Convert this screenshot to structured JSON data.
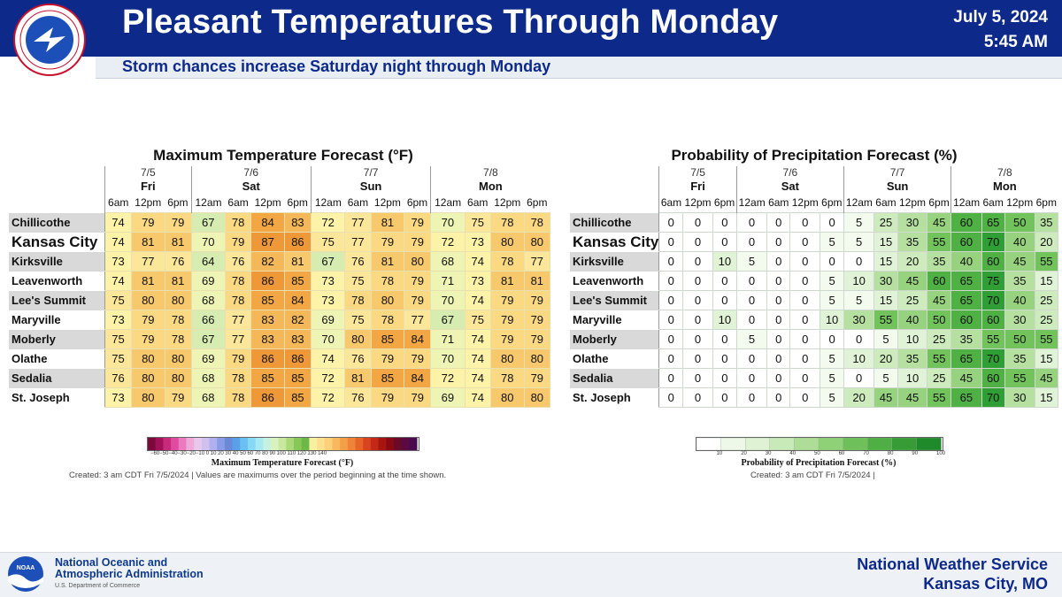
{
  "header": {
    "title": "Pleasant Temperatures Through Monday",
    "date": "July 5, 2024",
    "time": "5:45 AM",
    "subtitle": "Storm chances increase Saturday night through Monday",
    "logo_text": "NATIONAL WEATHER SERVICE"
  },
  "footer": {
    "noaa_line1": "National Oceanic and",
    "noaa_line2": "Atmospheric Administration",
    "noaa_sub": "U.S. Department of Commerce",
    "noaa_logo_text": "NOAA",
    "nws_line1": "National Weather Service",
    "nws_line2": "Kansas City, MO"
  },
  "colors": {
    "header_bg": "#0d2a8a",
    "temp_60s": "#d9efb0",
    "temp_low70s": "#fdf3a8",
    "temp_mid70s": "#fce79a",
    "temp_high70s": "#fbd37a",
    "temp_low80s": "#f9c46a",
    "temp_mid80s": "#f4a84a",
    "pop_white": "#ffffff",
    "pop_green_light": "#d7f0c6",
    "pop_green_dark": "#2e9e33"
  },
  "chart_data": [
    {
      "type": "table",
      "title": "Maximum Temperature Forecast (°F)",
      "days": [
        {
          "date": "7/5",
          "day": "Fri",
          "times": [
            "6am",
            "12pm",
            "6pm"
          ]
        },
        {
          "date": "7/6",
          "day": "Sat",
          "times": [
            "12am",
            "6am",
            "12pm",
            "6pm"
          ]
        },
        {
          "date": "7/7",
          "day": "Sun",
          "times": [
            "12am",
            "6am",
            "12pm",
            "6pm"
          ]
        },
        {
          "date": "7/8",
          "day": "Mon",
          "times": [
            "12am",
            "6am",
            "12pm",
            "6pm"
          ]
        }
      ],
      "rows": [
        {
          "location": "Chillicothe",
          "values": [
            74,
            79,
            79,
            67,
            78,
            84,
            83,
            72,
            77,
            81,
            79,
            70,
            75,
            78,
            78
          ]
        },
        {
          "location": "Kansas City",
          "values": [
            74,
            81,
            81,
            70,
            79,
            87,
            86,
            75,
            77,
            79,
            79,
            72,
            73,
            80,
            80
          ]
        },
        {
          "location": "Kirksville",
          "values": [
            73,
            77,
            76,
            64,
            76,
            82,
            81,
            67,
            76,
            81,
            80,
            68,
            74,
            78,
            77
          ]
        },
        {
          "location": "Leavenworth",
          "values": [
            74,
            81,
            81,
            69,
            78,
            86,
            85,
            73,
            75,
            78,
            79,
            71,
            73,
            81,
            81
          ]
        },
        {
          "location": "Lee's Summit",
          "values": [
            75,
            80,
            80,
            68,
            78,
            85,
            84,
            73,
            78,
            80,
            79,
            70,
            74,
            79,
            79
          ]
        },
        {
          "location": "Maryville",
          "values": [
            73,
            79,
            78,
            66,
            77,
            83,
            82,
            69,
            75,
            78,
            77,
            67,
            75,
            79,
            79
          ]
        },
        {
          "location": "Moberly",
          "values": [
            75,
            79,
            78,
            67,
            77,
            83,
            83,
            70,
            80,
            85,
            84,
            71,
            74,
            79,
            79
          ]
        },
        {
          "location": "Olathe",
          "values": [
            75,
            80,
            80,
            69,
            79,
            86,
            86,
            74,
            76,
            79,
            79,
            70,
            74,
            80,
            80
          ]
        },
        {
          "location": "Sedalia",
          "values": [
            76,
            80,
            80,
            68,
            78,
            85,
            85,
            72,
            81,
            85,
            84,
            72,
            74,
            78,
            79
          ]
        },
        {
          "location": "St. Joseph",
          "values": [
            73,
            80,
            79,
            68,
            78,
            86,
            85,
            72,
            76,
            79,
            79,
            69,
            74,
            80,
            80
          ]
        }
      ],
      "colorbar_label": "Maximum Temperature Forecast (°F)",
      "created_note": "Created: 3 am CDT Fri 7/5/2024 | Values are maximums over the period beginning at the time shown."
    },
    {
      "type": "table",
      "title": "Probability of Precipitation Forecast (%)",
      "days": [
        {
          "date": "7/5",
          "day": "Fri",
          "times": [
            "6am",
            "12pm",
            "6pm"
          ]
        },
        {
          "date": "7/6",
          "day": "Sat",
          "times": [
            "12am",
            "6am",
            "12pm",
            "6pm"
          ]
        },
        {
          "date": "7/7",
          "day": "Sun",
          "times": [
            "12am",
            "6am",
            "12pm",
            "6pm"
          ]
        },
        {
          "date": "7/8",
          "day": "Mon",
          "times": [
            "12am",
            "6am",
            "12pm",
            "6pm"
          ]
        }
      ],
      "rows": [
        {
          "location": "Chillicothe",
          "values": [
            0,
            0,
            0,
            0,
            0,
            0,
            0,
            5,
            25,
            30,
            45,
            60,
            65,
            50,
            35
          ]
        },
        {
          "location": "Kansas City",
          "values": [
            0,
            0,
            0,
            0,
            0,
            0,
            5,
            5,
            15,
            35,
            55,
            60,
            70,
            40,
            20
          ]
        },
        {
          "location": "Kirksville",
          "values": [
            0,
            0,
            10,
            5,
            0,
            0,
            0,
            0,
            15,
            20,
            35,
            40,
            60,
            45,
            55
          ]
        },
        {
          "location": "Leavenworth",
          "values": [
            0,
            0,
            0,
            0,
            0,
            0,
            5,
            10,
            30,
            45,
            60,
            65,
            75,
            35,
            15
          ]
        },
        {
          "location": "Lee's Summit",
          "values": [
            0,
            0,
            0,
            0,
            0,
            0,
            5,
            5,
            15,
            25,
            45,
            65,
            70,
            40,
            25
          ]
        },
        {
          "location": "Maryville",
          "values": [
            0,
            0,
            10,
            0,
            0,
            0,
            10,
            30,
            55,
            40,
            50,
            60,
            60,
            30,
            25
          ]
        },
        {
          "location": "Moberly",
          "values": [
            0,
            0,
            0,
            5,
            0,
            0,
            0,
            0,
            5,
            10,
            25,
            35,
            55,
            50,
            55
          ]
        },
        {
          "location": "Olathe",
          "values": [
            0,
            0,
            0,
            0,
            0,
            0,
            5,
            10,
            20,
            35,
            55,
            65,
            70,
            35,
            15
          ]
        },
        {
          "location": "Sedalia",
          "values": [
            0,
            0,
            0,
            0,
            0,
            0,
            5,
            0,
            5,
            10,
            25,
            45,
            60,
            55,
            45
          ]
        },
        {
          "location": "St. Joseph",
          "values": [
            0,
            0,
            0,
            0,
            0,
            0,
            5,
            20,
            45,
            45,
            55,
            65,
            70,
            30,
            15
          ]
        }
      ],
      "colorbar_label": "Probability of Precipitation Forecast (%)",
      "colorbar_ticks": [
        "10",
        "20",
        "30",
        "40",
        "50",
        "60",
        "70",
        "80",
        "90",
        "100"
      ],
      "created_note": "Created: 3 am CDT Fri 7/5/2024 |"
    }
  ]
}
